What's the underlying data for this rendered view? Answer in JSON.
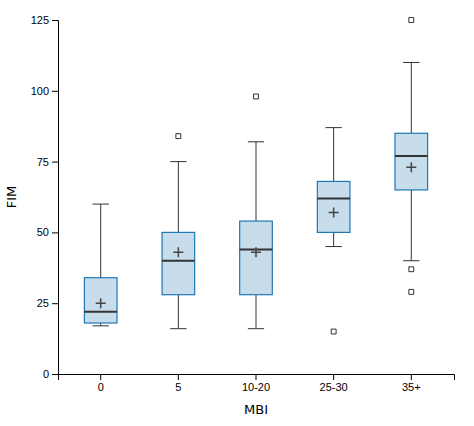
{
  "chart_data": {
    "type": "box",
    "xlabel": "MBI",
    "ylabel": "FIM",
    "categories": [
      "0",
      "5",
      "10-20",
      "25-30",
      "35+"
    ],
    "boxes": [
      {
        "q1": 18,
        "median": 22,
        "q3": 34,
        "whislo": 17,
        "whishi": 60,
        "mean": 25,
        "fliers": []
      },
      {
        "q1": 28,
        "median": 40,
        "q3": 50,
        "whislo": 16,
        "whishi": 75,
        "mean": 43,
        "fliers": [
          84
        ]
      },
      {
        "q1": 28,
        "median": 44,
        "q3": 54,
        "whislo": 16,
        "whishi": 82,
        "mean": 43,
        "fliers": [
          98
        ]
      },
      {
        "q1": 50,
        "median": 62,
        "q3": 68,
        "whislo": 45,
        "whishi": 87,
        "mean": 57,
        "fliers": [
          15
        ]
      },
      {
        "q1": 65,
        "median": 77,
        "q3": 85,
        "whislo": 40,
        "whishi": 110,
        "mean": 73,
        "fliers": [
          29,
          37,
          125
        ]
      }
    ],
    "ylim": [
      0,
      125
    ],
    "yticks": [
      0,
      25,
      50,
      75,
      100,
      125
    ],
    "grid": false
  }
}
